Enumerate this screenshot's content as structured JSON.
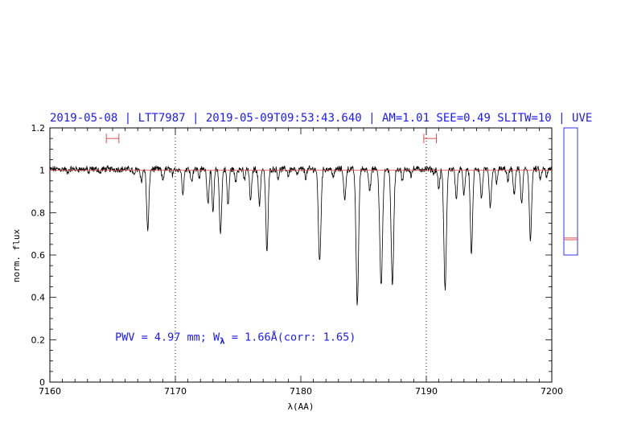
{
  "chart_data": {
    "type": "line",
    "title": "2019-05-08 | LTT7987 | 2019-05-09T09:53:43.640 | AM=1.01 SEE=0.49 SLITW=10 | UVE",
    "xlabel": "λ(AA)",
    "ylabel": "norm. flux",
    "xlim": [
      7160,
      7200
    ],
    "ylim": [
      0,
      1.2
    ],
    "xticks": [
      "7160",
      "7170",
      "7180",
      "7190",
      "7200"
    ],
    "yticks": [
      "0",
      "0.2",
      "0.4",
      "0.6",
      "0.8",
      "1",
      "1.2"
    ],
    "grid": false,
    "reference_line": {
      "y": 1.0,
      "color": "#e05050"
    },
    "vertical_markers": [
      7170,
      7190
    ],
    "continuum_windows": [
      {
        "x": [
          7164.5,
          7165.5
        ],
        "y": 1.15
      },
      {
        "x": [
          7189.8,
          7190.8
        ],
        "y": 1.15
      }
    ],
    "annotation": {
      "pwv_label": "PWV = 4.97 mm; W",
      "lambda_sub": "λ",
      "ew_label": " = 1.66Å(corr: 1.65)",
      "x": 7165.2,
      "y": 0.195
    },
    "side_panel": {
      "ylim": [
        0.6,
        1.2
      ],
      "marks": [
        0.672,
        0.68
      ]
    },
    "series": [
      {
        "color": "#000000",
        "continuum": 1.005,
        "noise": 0.012,
        "lines": [
          [
            7161.4,
            0.02,
            0.06
          ],
          [
            7163.1,
            0.02,
            0.05
          ],
          [
            7164.0,
            0.02,
            0.06
          ],
          [
            7166.7,
            0.03,
            0.07
          ],
          [
            7167.3,
            0.06,
            0.07
          ],
          [
            7167.8,
            0.29,
            0.09
          ],
          [
            7169.0,
            0.05,
            0.08
          ],
          [
            7169.8,
            0.03,
            0.06
          ],
          [
            7170.6,
            0.11,
            0.08
          ],
          [
            7171.3,
            0.06,
            0.07
          ],
          [
            7171.9,
            0.04,
            0.06
          ],
          [
            7172.6,
            0.16,
            0.08
          ],
          [
            7173.0,
            0.2,
            0.08
          ],
          [
            7173.6,
            0.3,
            0.09
          ],
          [
            7174.2,
            0.17,
            0.08
          ],
          [
            7174.8,
            0.06,
            0.07
          ],
          [
            7175.5,
            0.05,
            0.07
          ],
          [
            7176.0,
            0.15,
            0.08
          ],
          [
            7176.7,
            0.17,
            0.08
          ],
          [
            7177.3,
            0.39,
            0.09
          ],
          [
            7178.2,
            0.04,
            0.07
          ],
          [
            7179.0,
            0.03,
            0.06
          ],
          [
            7179.7,
            0.03,
            0.07
          ],
          [
            7180.4,
            0.04,
            0.07
          ],
          [
            7181.5,
            0.44,
            0.1
          ],
          [
            7182.6,
            0.04,
            0.07
          ],
          [
            7183.5,
            0.15,
            0.08
          ],
          [
            7184.5,
            0.64,
            0.1
          ],
          [
            7185.5,
            0.1,
            0.08
          ],
          [
            7186.4,
            0.55,
            0.11
          ],
          [
            7187.3,
            0.55,
            0.1
          ],
          [
            7188.1,
            0.06,
            0.07
          ],
          [
            7188.8,
            0.03,
            0.06
          ],
          [
            7190.6,
            0.02,
            0.06
          ],
          [
            7191.0,
            0.09,
            0.08
          ],
          [
            7191.5,
            0.57,
            0.1
          ],
          [
            7192.4,
            0.14,
            0.08
          ],
          [
            7193.0,
            0.12,
            0.08
          ],
          [
            7193.6,
            0.4,
            0.09
          ],
          [
            7194.4,
            0.14,
            0.08
          ],
          [
            7195.1,
            0.18,
            0.09
          ],
          [
            7195.6,
            0.06,
            0.07
          ],
          [
            7196.5,
            0.06,
            0.07
          ],
          [
            7197.0,
            0.12,
            0.08
          ],
          [
            7197.6,
            0.17,
            0.08
          ],
          [
            7198.3,
            0.33,
            0.09
          ],
          [
            7199.1,
            0.05,
            0.07
          ],
          [
            7199.6,
            0.04,
            0.06
          ]
        ]
      }
    ]
  }
}
